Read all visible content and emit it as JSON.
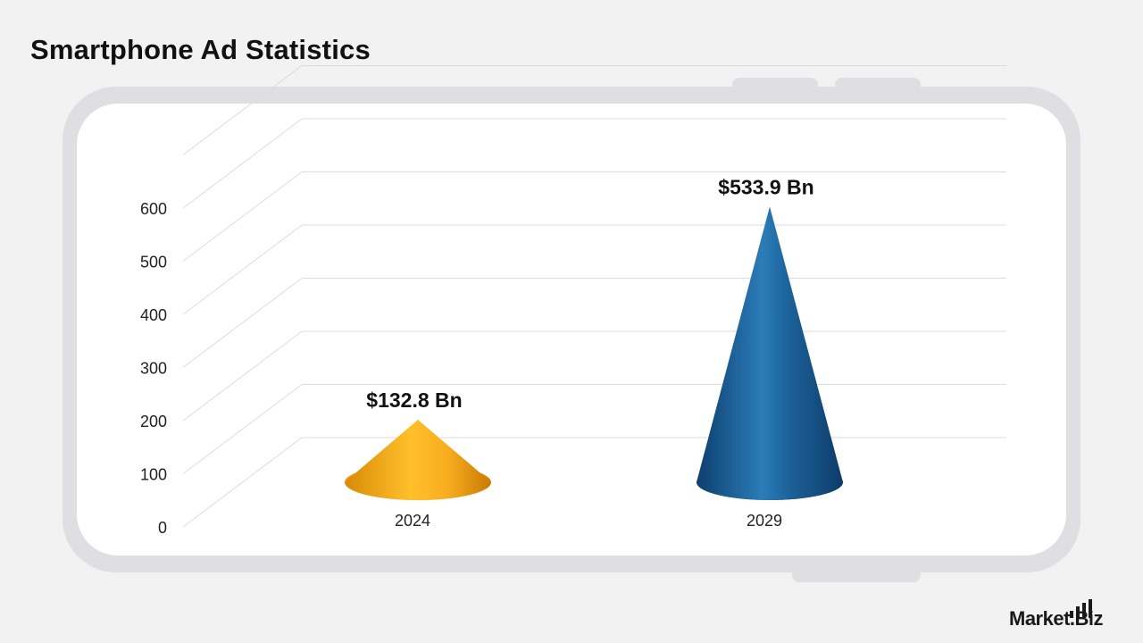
{
  "title": "Smartphone Ad Statistics",
  "logo": {
    "text": "Market.Biz"
  },
  "colors": {
    "cone_2024": "#f5a51c",
    "cone_2029": "#1f5f93"
  },
  "chart_data": {
    "type": "bar",
    "title": "Smartphone Ad Statistics",
    "categories": [
      "2024",
      "2029"
    ],
    "values": [
      132.8,
      533.9
    ],
    "data_labels": [
      "$132.8 Bn",
      "$533.9 Bn"
    ],
    "ylim": [
      0,
      600
    ],
    "yticks": [
      0,
      100,
      200,
      300,
      400,
      500,
      600
    ],
    "xlabel": "",
    "ylabel": "",
    "grid": true
  }
}
